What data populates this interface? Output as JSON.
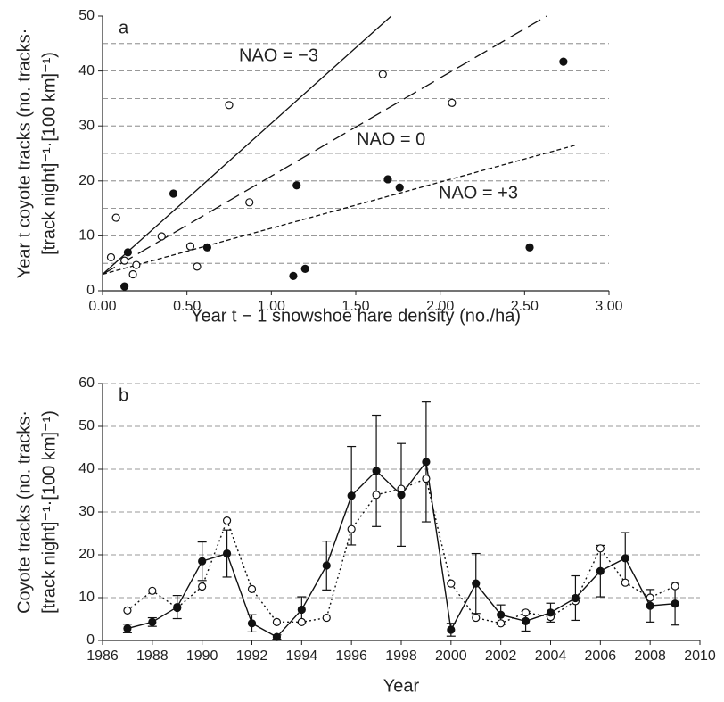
{
  "chart_data": [
    {
      "type": "scatter",
      "panel_label": "a",
      "xlabel": "Year t − 1 snowshoe hare density (no./ha)",
      "ylabel": [
        "Year t coyote tracks (no. tracks·",
        "[track night]⁻¹·[100 km]⁻¹)"
      ],
      "xlim": [
        0,
        3
      ],
      "ylim": [
        0,
        50
      ],
      "xticks": [
        {
          "value": 0,
          "label": "0.00"
        },
        {
          "value": 0.5,
          "label": "0.50"
        },
        {
          "value": 1,
          "label": "1.00"
        },
        {
          "value": 1.5,
          "label": "1.50"
        },
        {
          "value": 2,
          "label": "2.00"
        },
        {
          "value": 2.5,
          "label": "2.50"
        },
        {
          "value": 3,
          "label": "3.00"
        }
      ],
      "yticks": [
        0,
        10,
        20,
        30,
        40,
        50
      ],
      "grid_lines": [
        5,
        10,
        15,
        20,
        25,
        30,
        35,
        40,
        45
      ],
      "series": [
        {
          "marker": "filled",
          "color": "#111111",
          "x": [
            0.13,
            0.15,
            0.42,
            0.62,
            1.13,
            1.15,
            1.2,
            1.69,
            1.76,
            2.53,
            2.73
          ],
          "values": [
            0.8,
            7,
            17.7,
            7.9,
            2.7,
            19.2,
            4,
            20.3,
            18.8,
            7.9,
            41.7
          ]
        },
        {
          "marker": "open",
          "color": "#111111",
          "x": [
            0.05,
            0.08,
            0.13,
            0.18,
            0.2,
            0.35,
            0.52,
            0.56,
            0.75,
            0.87,
            1.66,
            2.07
          ],
          "values": [
            6.1,
            13.3,
            5.5,
            3,
            4.7,
            9.9,
            8.1,
            4.4,
            33.8,
            16.1,
            39.4,
            34.2
          ]
        }
      ],
      "lines": [
        {
          "label": "NAO = −3",
          "dash": "solid",
          "x": [
            0,
            1.71
          ],
          "values": [
            3,
            50
          ]
        },
        {
          "label": "NAO = 0",
          "dash": "long",
          "x": [
            0,
            2.63
          ],
          "values": [
            3,
            50
          ]
        },
        {
          "label": "NAO = +3",
          "dash": "short",
          "x": [
            0,
            2.8
          ],
          "values": [
            3,
            26.5
          ]
        }
      ]
    },
    {
      "type": "line",
      "panel_label": "b",
      "xlabel": "Year",
      "ylabel": [
        "Coyote tracks (no. tracks·",
        "[track night]⁻¹·[100 km]⁻¹)"
      ],
      "xlim": [
        1986,
        2010
      ],
      "ylim": [
        0,
        60
      ],
      "xticks": [
        1986,
        1988,
        1990,
        1992,
        1994,
        1996,
        1998,
        2000,
        2002,
        2004,
        2006,
        2008,
        2010
      ],
      "yticks": [
        0,
        10,
        20,
        30,
        40,
        50,
        60
      ],
      "grid_lines": [
        10,
        20,
        30,
        40,
        50,
        60
      ],
      "x": [
        1987,
        1988,
        1989,
        1990,
        1991,
        1992,
        1993,
        1994,
        1995,
        1996,
        1997,
        1998,
        1999,
        2000,
        2001,
        2002,
        2003,
        2004,
        2005,
        2006,
        2007,
        2008,
        2009
      ],
      "series": [
        {
          "marker": "filled",
          "dash": "solid",
          "color": "#111111",
          "values": [
            2.8,
            4.3,
            7.8,
            18.5,
            20.3,
            4,
            0.8,
            7.2,
            17.5,
            33.8,
            39.6,
            34,
            41.7,
            2.5,
            13.3,
            6,
            4.5,
            6.5,
            9.9,
            16.2,
            19.2,
            8.1,
            8.6
          ],
          "errors": [
            1,
            1,
            2.7,
            4.5,
            5.5,
            2,
            0.5,
            3,
            5.7,
            11.5,
            13,
            12,
            14,
            1.5,
            7,
            2.3,
            2.3,
            2.2,
            5.2,
            6,
            6,
            3.8,
            5
          ]
        },
        {
          "marker": "open",
          "dash": "dotted",
          "color": "#111111",
          "values": [
            7,
            11.6,
            7.6,
            12.6,
            28,
            12,
            4.3,
            4.3,
            5.3,
            26,
            34,
            35.4,
            37.8,
            13.3,
            5.3,
            4,
            6.5,
            5.5,
            9.2,
            21.5,
            13.5,
            10,
            12.7
          ]
        }
      ]
    }
  ]
}
